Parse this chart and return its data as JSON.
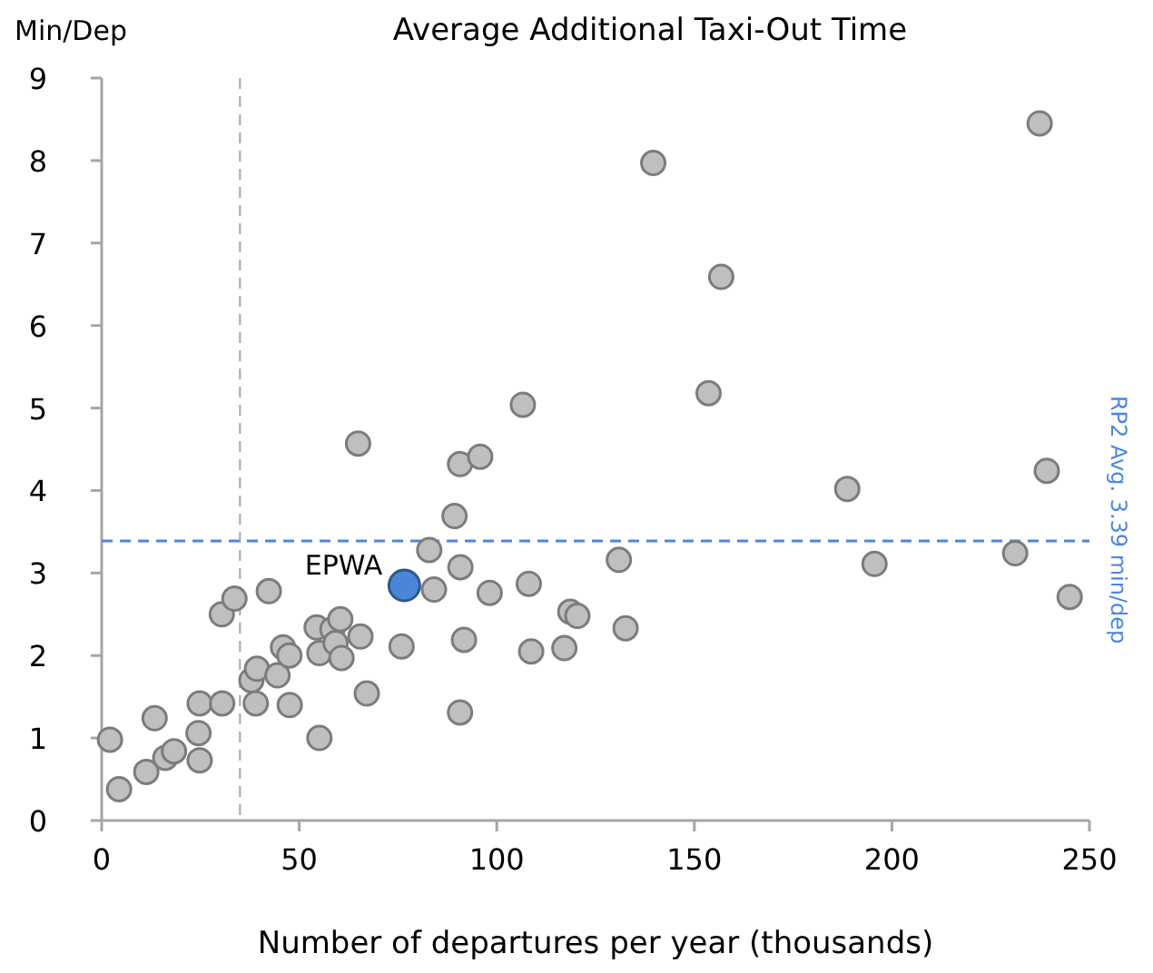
{
  "chart_data": {
    "type": "scatter",
    "title": "Average Additional Taxi-Out Time",
    "xlabel": "Number of departures per year (thousands)",
    "ylabel": "Min/Dep",
    "xlim": [
      0,
      250
    ],
    "xticks": [
      0,
      50,
      100,
      150,
      200,
      250
    ],
    "ylim": [
      0,
      9
    ],
    "yticks": [
      0,
      1,
      2,
      3,
      4,
      5,
      6,
      7,
      8,
      9
    ],
    "grid": false,
    "marker": "circle",
    "series": [
      {
        "color": "#bfbfbf",
        "x": [
          2.1,
          4.4,
          11.3,
          13.4,
          16.1,
          18.3,
          24.5,
          24.8,
          24.8,
          30.5,
          30.4,
          33.6,
          37.9,
          39.3,
          39.0,
          42.3,
          44.5,
          45.9,
          47.5,
          47.6,
          54.4,
          55.1,
          55.1,
          58.4,
          60.4,
          59.2,
          60.7,
          65.5,
          67.1,
          75.9,
          82.9,
          84.1,
          89.3,
          90.8,
          91.7,
          90.7,
          98.2,
          108.1,
          108.7,
          117.1,
          118.6,
          120.4,
          90.7,
          95.8,
          64.9,
          106.6,
          130.9,
          132.6,
          188.7,
          195.6,
          231.2,
          239.2,
          245.0,
          139.6,
          237.4,
          156.8,
          153.6
        ],
        "values": [
          0.98,
          0.38,
          0.59,
          1.24,
          0.76,
          0.84,
          1.06,
          0.73,
          1.42,
          1.42,
          2.5,
          2.69,
          1.7,
          1.84,
          1.42,
          2.78,
          1.76,
          2.1,
          2.0,
          1.4,
          2.34,
          2.03,
          1.0,
          2.32,
          2.44,
          2.15,
          1.97,
          2.23,
          1.54,
          2.11,
          3.28,
          2.8,
          3.69,
          3.07,
          2.19,
          1.31,
          2.76,
          2.87,
          2.05,
          2.09,
          2.53,
          2.48,
          4.32,
          4.41,
          4.57,
          5.04,
          3.16,
          2.33,
          4.02,
          3.11,
          3.24,
          4.24,
          2.71,
          7.97,
          8.45,
          6.59,
          5.18
        ]
      },
      {
        "color": "#4a86d6",
        "x": [
          76.6
        ],
        "values": [
          2.85
        ]
      }
    ],
    "ref_lines": [
      {
        "axis": "y",
        "value": 3.39,
        "label": "RP2 Avg. 3.39 min/dep",
        "color": "#4a86e8",
        "line_style": "dashed"
      },
      {
        "axis": "x",
        "value": 35,
        "color": "#a6a6a6",
        "line_style": "dashed"
      }
    ],
    "annotations": [
      {
        "text": "EPWA",
        "x": 76.6,
        "y": 2.85
      }
    ]
  }
}
